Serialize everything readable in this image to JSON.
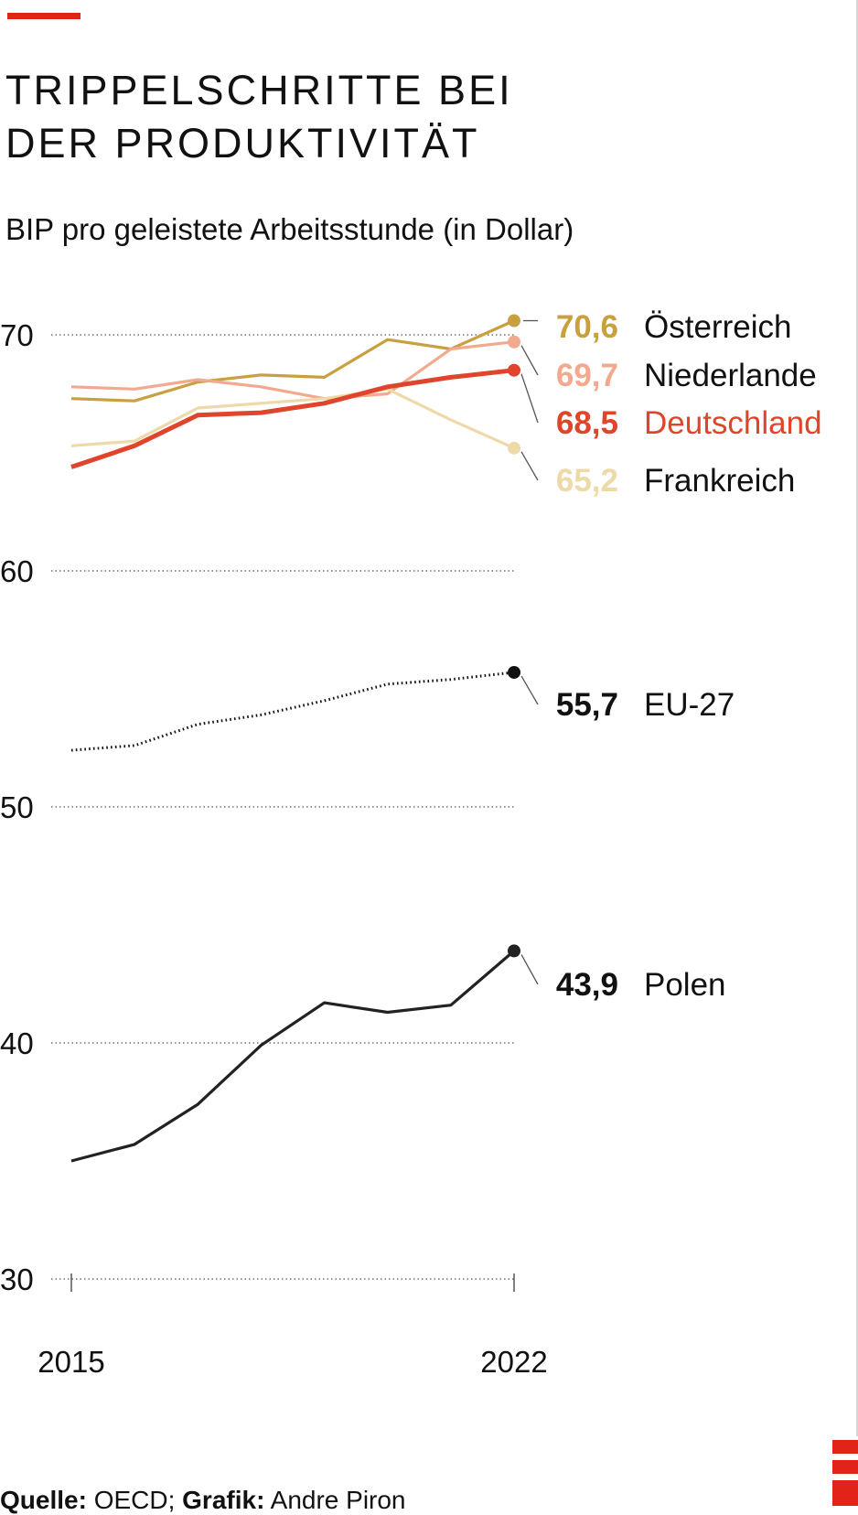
{
  "header": {
    "title_line1": "TRIPPELSCHRITTE BEI",
    "title_line2": "DER PRODUKTIVITÄT",
    "subtitle": "BIP pro geleistete Arbeitsstunde (in Dollar)"
  },
  "footer": {
    "source_label": "Quelle:",
    "source_value": " OECD; ",
    "graphic_label": "Grafik:",
    "graphic_value": " Andre Piron"
  },
  "colors": {
    "accent": "#e2231a",
    "oesterreich": "#c8a040",
    "niederlande": "#f2a98e",
    "deutschland": "#e0442b",
    "frankreich": "#eed9a8",
    "eu": "#111111",
    "polen": "#222222"
  },
  "chart_data": {
    "type": "line",
    "title": "TRIPPELSCHRITTE BEI DER PRODUKTIVITÄT",
    "subtitle": "BIP pro geleistete Arbeitsstunde (in Dollar)",
    "xlabel": "",
    "ylabel": "",
    "x": [
      2015,
      2016,
      2017,
      2018,
      2019,
      2020,
      2021,
      2022
    ],
    "x_tick_labels": [
      "2015",
      "2022"
    ],
    "ylim": [
      30,
      73
    ],
    "y_ticks": [
      30,
      40,
      50,
      60,
      70
    ],
    "y_tick_labels": [
      "30",
      "40",
      "50",
      "60",
      "70"
    ],
    "grid": "horizontal dotted",
    "series": [
      {
        "name": "Österreich",
        "label": "70,6",
        "color": "#c8a040",
        "style": "solid",
        "emphasis": false,
        "values": [
          67.3,
          67.2,
          68.0,
          68.3,
          68.2,
          69.8,
          69.4,
          70.6
        ]
      },
      {
        "name": "Niederlande",
        "label": "69,7",
        "color": "#f2a98e",
        "style": "solid",
        "emphasis": false,
        "values": [
          67.8,
          67.7,
          68.1,
          67.8,
          67.3,
          67.5,
          69.4,
          69.7
        ]
      },
      {
        "name": "Frankreich",
        "label": "65,2",
        "color": "#eed9a8",
        "style": "solid",
        "emphasis": false,
        "values": [
          65.3,
          65.5,
          66.9,
          67.1,
          67.3,
          67.7,
          66.4,
          65.2
        ]
      },
      {
        "name": "Deutschland",
        "label": "68,5",
        "color": "#e0442b",
        "style": "solid",
        "emphasis": true,
        "values": [
          64.4,
          65.3,
          66.6,
          66.7,
          67.1,
          67.8,
          68.2,
          68.5
        ]
      },
      {
        "name": "EU-27",
        "label": "55,7",
        "color": "#111111",
        "style": "dotted",
        "emphasis": false,
        "values": [
          52.4,
          52.6,
          53.5,
          53.9,
          54.5,
          55.2,
          55.4,
          55.7
        ]
      },
      {
        "name": "Polen",
        "label": "43,9",
        "color": "#222222",
        "style": "solid",
        "emphasis": false,
        "values": [
          35.0,
          35.7,
          37.4,
          39.9,
          41.7,
          41.3,
          41.6,
          43.9
        ]
      }
    ]
  }
}
